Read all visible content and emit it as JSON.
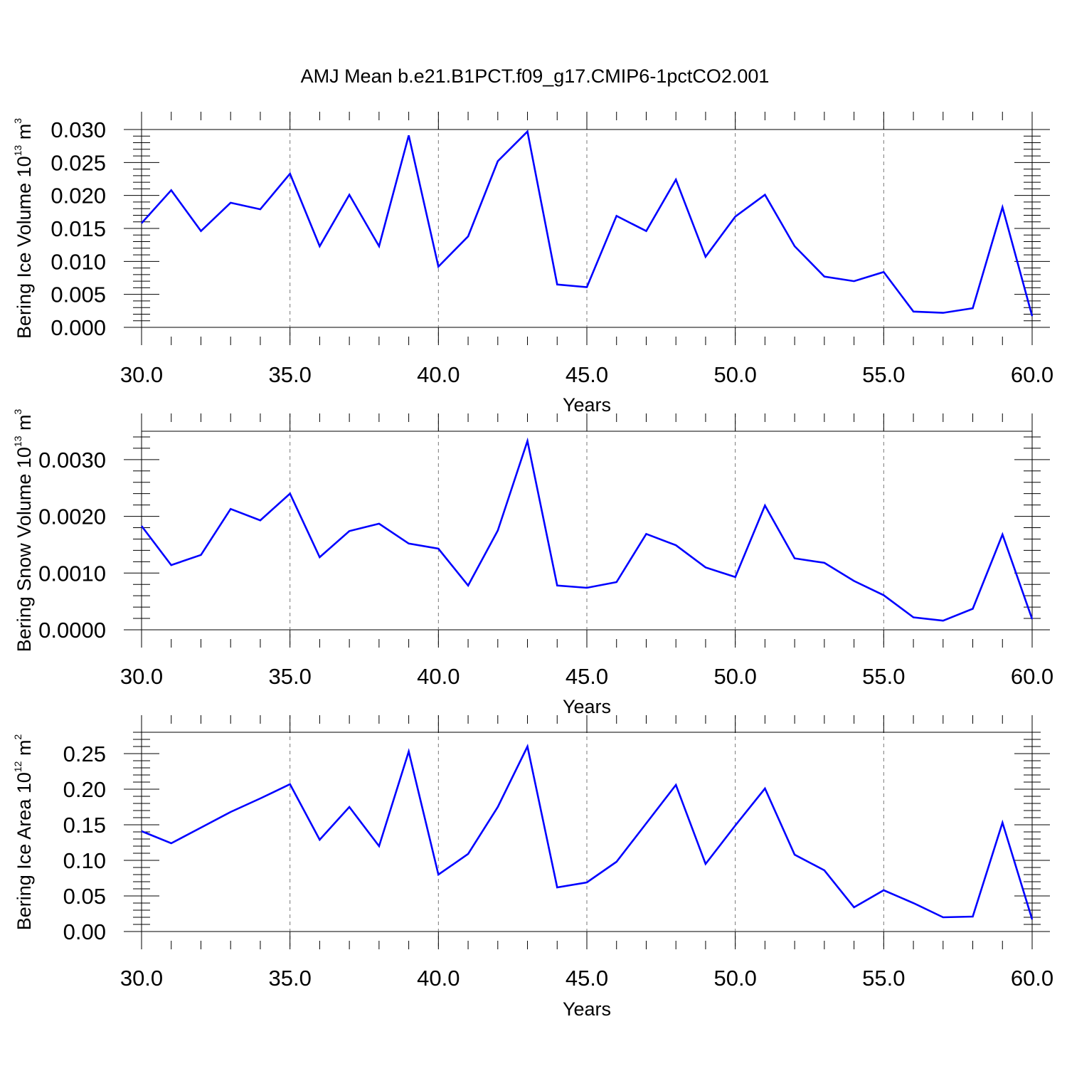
{
  "title": "AMJ Mean b.e21.B1PCT.f09_g17.CMIP6-1pctCO2.001",
  "colors": {
    "series": "#0000ff",
    "axis": "#000000",
    "grid": "#777777"
  },
  "chart_data": [
    {
      "type": "line",
      "ylabel": {
        "text": "Bering Ice Volume 10",
        "sup": "13",
        "unit": " m",
        "unit_sup": "3"
      },
      "xlabel": "Years",
      "xlim": [
        30,
        60
      ],
      "ylim": [
        0,
        0.03
      ],
      "xticks": [
        "30.0",
        "35.0",
        "40.0",
        "45.0",
        "50.0",
        "55.0",
        "60.0"
      ],
      "yticks": [
        "0.000",
        "0.005",
        "0.010",
        "0.015",
        "0.020",
        "0.025",
        "0.030"
      ],
      "grid": "dashed vertical at major x ticks",
      "x": [
        30,
        31,
        32,
        33,
        34,
        35,
        36,
        37,
        38,
        39,
        40,
        41,
        42,
        43,
        44,
        45,
        46,
        47,
        48,
        49,
        50,
        51,
        52,
        53,
        54,
        55,
        56,
        57,
        58,
        59,
        60
      ],
      "series": [
        {
          "values": [
            0.0158,
            0.0208,
            0.0146,
            0.0189,
            0.0179,
            0.0233,
            0.0123,
            0.0201,
            0.0123,
            0.0291,
            0.0092,
            0.0138,
            0.0252,
            0.0297,
            0.0065,
            0.0061,
            0.0169,
            0.0146,
            0.0224,
            0.0107,
            0.0168,
            0.0201,
            0.0123,
            0.0077,
            0.007,
            0.0084,
            0.0024,
            0.0022,
            0.0029,
            0.0182,
            0.0017
          ]
        }
      ]
    },
    {
      "type": "line",
      "ylabel": {
        "text": "Bering Snow Volume 10",
        "sup": "13",
        "unit": " m",
        "unit_sup": "3"
      },
      "xlabel": "Years",
      "xlim": [
        30,
        60
      ],
      "ylim": [
        0,
        0.0035
      ],
      "xticks": [
        "30.0",
        "35.0",
        "40.0",
        "45.0",
        "50.0",
        "55.0",
        "60.0"
      ],
      "yticks": [
        "0.0000",
        "0.0010",
        "0.0020",
        "0.0030"
      ],
      "grid": "dashed vertical at major x ticks",
      "x": [
        30,
        31,
        32,
        33,
        34,
        35,
        36,
        37,
        38,
        39,
        40,
        41,
        42,
        43,
        44,
        45,
        46,
        47,
        48,
        49,
        50,
        51,
        52,
        53,
        54,
        55,
        56,
        57,
        58,
        59,
        60
      ],
      "series": [
        {
          "values": [
            0.00183,
            0.00114,
            0.00132,
            0.00213,
            0.00193,
            0.0024,
            0.00128,
            0.00174,
            0.00187,
            0.00152,
            0.00143,
            0.00078,
            0.00175,
            0.00333,
            0.00078,
            0.00074,
            0.00084,
            0.00169,
            0.00149,
            0.0011,
            0.00093,
            0.00219,
            0.00126,
            0.00118,
            0.00086,
            0.00061,
            0.00022,
            0.00016,
            0.00037,
            0.00168,
            0.00019
          ]
        }
      ]
    },
    {
      "type": "line",
      "ylabel": {
        "text": "Bering Ice Area 10",
        "sup": "12",
        "unit": " m",
        "unit_sup": "2"
      },
      "xlabel": "Years",
      "xlim": [
        30,
        60
      ],
      "ylim": [
        0,
        0.28
      ],
      "xticks": [
        "30.0",
        "35.0",
        "40.0",
        "45.0",
        "50.0",
        "55.0",
        "60.0"
      ],
      "yticks": [
        "0.00",
        "0.05",
        "0.10",
        "0.15",
        "0.20",
        "0.25"
      ],
      "grid": "dashed vertical at major x ticks",
      "x": [
        30,
        31,
        32,
        33,
        34,
        35,
        36,
        37,
        38,
        39,
        40,
        41,
        42,
        43,
        44,
        45,
        46,
        47,
        48,
        49,
        50,
        51,
        52,
        53,
        54,
        55,
        56,
        57,
        58,
        59,
        60
      ],
      "series": [
        {
          "values": [
            0.141,
            0.124,
            0.146,
            0.168,
            0.187,
            0.207,
            0.129,
            0.175,
            0.12,
            0.253,
            0.08,
            0.109,
            0.175,
            0.26,
            0.062,
            0.069,
            0.098,
            0.152,
            0.206,
            0.095,
            0.149,
            0.201,
            0.108,
            0.086,
            0.034,
            0.058,
            0.04,
            0.02,
            0.021,
            0.153,
            0.017
          ]
        }
      ]
    }
  ]
}
